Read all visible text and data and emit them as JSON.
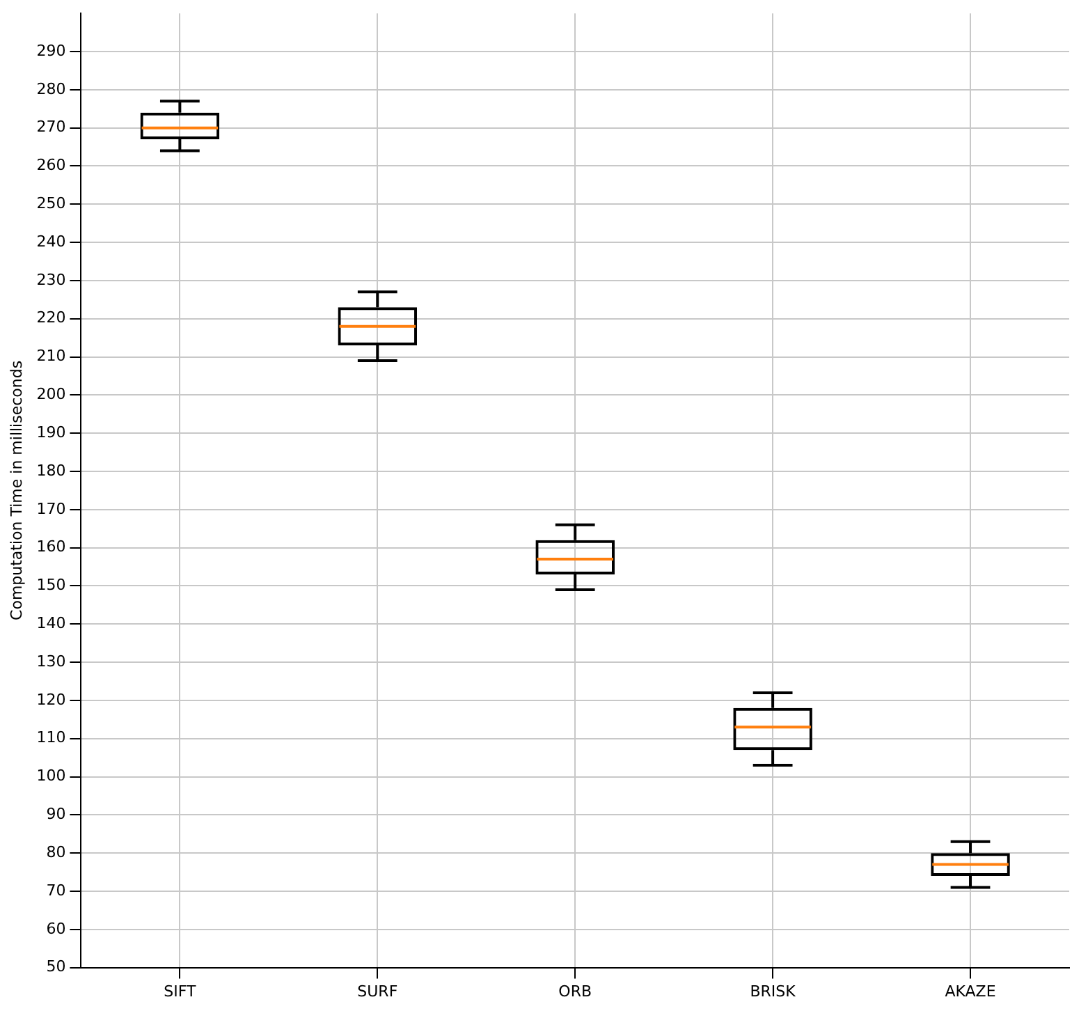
{
  "chart_data": {
    "type": "box",
    "ylabel": "Computation Time in milliseconds",
    "categories": [
      "SIFT",
      "SURF",
      "ORB",
      "BRISK",
      "AKAZE"
    ],
    "boxes": [
      {
        "low": 264,
        "q1": 267,
        "median": 270,
        "q3": 274,
        "high": 277
      },
      {
        "low": 209,
        "q1": 213,
        "median": 218,
        "q3": 223,
        "high": 227
      },
      {
        "low": 149,
        "q1": 153,
        "median": 157,
        "q3": 162,
        "high": 166
      },
      {
        "low": 103,
        "q1": 107,
        "median": 113,
        "q3": 118,
        "high": 122
      },
      {
        "low": 71,
        "q1": 74,
        "median": 77,
        "q3": 80,
        "high": 83
      }
    ],
    "ylim": [
      50,
      300
    ],
    "yticks": [
      50,
      60,
      70,
      80,
      90,
      100,
      110,
      120,
      130,
      140,
      150,
      160,
      170,
      180,
      190,
      200,
      210,
      220,
      230,
      240,
      250,
      260,
      270,
      280,
      290
    ],
    "grid": true
  }
}
